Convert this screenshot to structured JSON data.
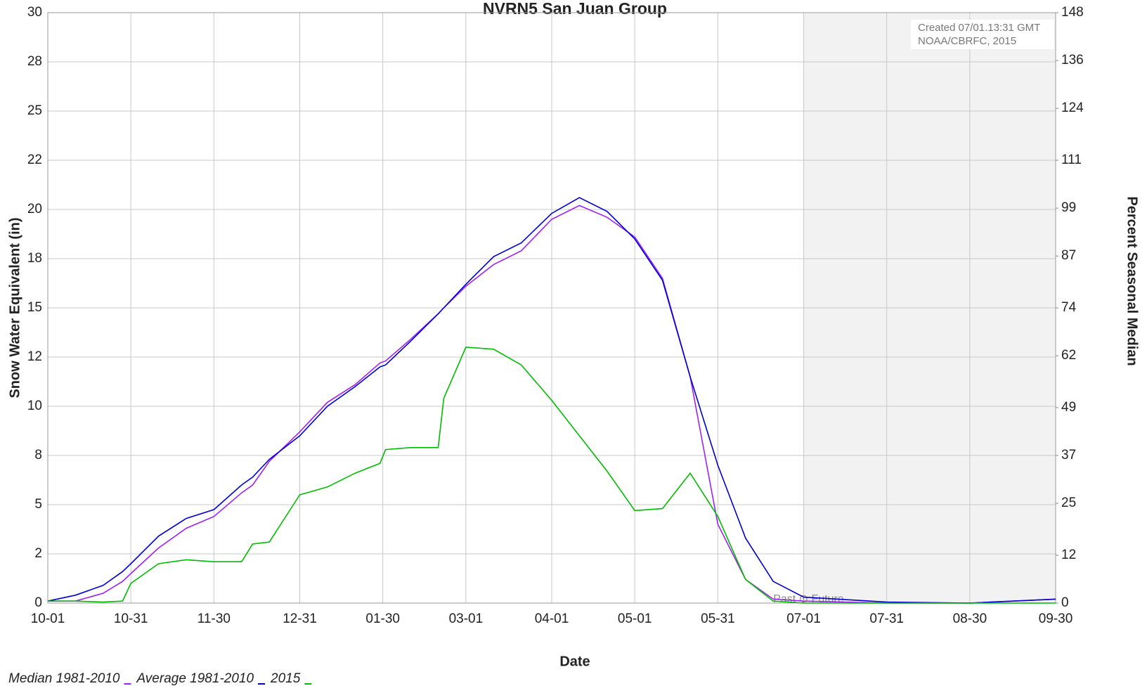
{
  "chart_data": {
    "type": "line",
    "title": "NVRN5 San Juan  Group",
    "x_label": "Date",
    "y_label": "Snow Water Equivalent (in)",
    "y2_label": "Percent Seasonal Median",
    "annotations": [
      "Created 07/01.13:31 GMT",
      "NOAA/CBRFC, 2015"
    ],
    "split_label": "Past ⊙ Future",
    "split_date": "07-01",
    "grid": true,
    "legend": "bottom-left",
    "x": [
      "10-01",
      "10-11",
      "10-21",
      "10-28",
      "10-31",
      "11-10",
      "11-20",
      "11-30",
      "12-10",
      "12-14",
      "12-20",
      "12-31",
      "01-10",
      "01-20",
      "01-29",
      "01-31",
      "02-09",
      "02-19",
      "02-21",
      "03-01",
      "03-11",
      "03-21",
      "04-01",
      "04-11",
      "04-21",
      "05-01",
      "05-11",
      "05-21",
      "05-31",
      "06-10",
      "06-20",
      "07-01",
      "07-31",
      "08-30",
      "09-30"
    ],
    "xticks": [
      "10-01",
      "10-31",
      "11-30",
      "12-31",
      "01-30",
      "03-01",
      "04-01",
      "05-01",
      "05-31",
      "07-01",
      "07-31",
      "08-30",
      "09-30"
    ],
    "ylim": [
      0,
      30
    ],
    "yticks": [
      0,
      {
        "value": 2.5,
        "label": "2"
      },
      5,
      {
        "value": 7.5,
        "label": "8"
      },
      10,
      {
        "value": 12.5,
        "label": "12"
      },
      15,
      {
        "value": 17.5,
        "label": "18"
      },
      20,
      {
        "value": 22.5,
        "label": "22"
      },
      25,
      {
        "value": 27.5,
        "label": "28"
      },
      30
    ],
    "y2lim": [
      0,
      148
    ],
    "y2ticks": [
      0,
      12,
      25,
      37,
      49,
      62,
      74,
      87,
      99,
      111,
      124,
      136,
      148
    ],
    "series": [
      {
        "name": "Median 1981-2010",
        "color": "#a020f0",
        "values": [
          0.1,
          0.1,
          0.5,
          1.1,
          1.5,
          2.8,
          3.8,
          4.4,
          5.6,
          6.0,
          7.2,
          8.7,
          10.2,
          11.1,
          12.2,
          12.3,
          13.4,
          14.7,
          15.0,
          16.1,
          17.2,
          17.9,
          19.5,
          20.2,
          19.6,
          18.6,
          16.5,
          11.5,
          4.0,
          1.2,
          0.2,
          0.1,
          0,
          0,
          0.2
        ]
      },
      {
        "name": "Average 1981-2010",
        "color": "#0000cd",
        "values": [
          0.1,
          0.4,
          0.9,
          1.6,
          2.0,
          3.4,
          4.3,
          4.75,
          6.0,
          6.4,
          7.3,
          8.5,
          10.0,
          11.0,
          12.0,
          12.1,
          13.3,
          14.7,
          15.0,
          16.2,
          17.6,
          18.3,
          19.8,
          20.6,
          19.9,
          18.5,
          16.4,
          11.5,
          7.0,
          3.3,
          1.1,
          0.3,
          0.05,
          0,
          0.2
        ]
      },
      {
        "name": "2015",
        "color": "#00bb00",
        "values": [
          0.1,
          0.1,
          0.05,
          0.1,
          1.0,
          2.0,
          2.2,
          2.1,
          2.1,
          3.0,
          3.1,
          5.5,
          5.9,
          6.6,
          7.1,
          7.8,
          7.9,
          7.9,
          10.4,
          13.0,
          12.9,
          12.1,
          10.3,
          8.5,
          6.7,
          4.7,
          4.8,
          6.6,
          4.4,
          1.2,
          0.1,
          0,
          0,
          0,
          0
        ]
      }
    ]
  }
}
